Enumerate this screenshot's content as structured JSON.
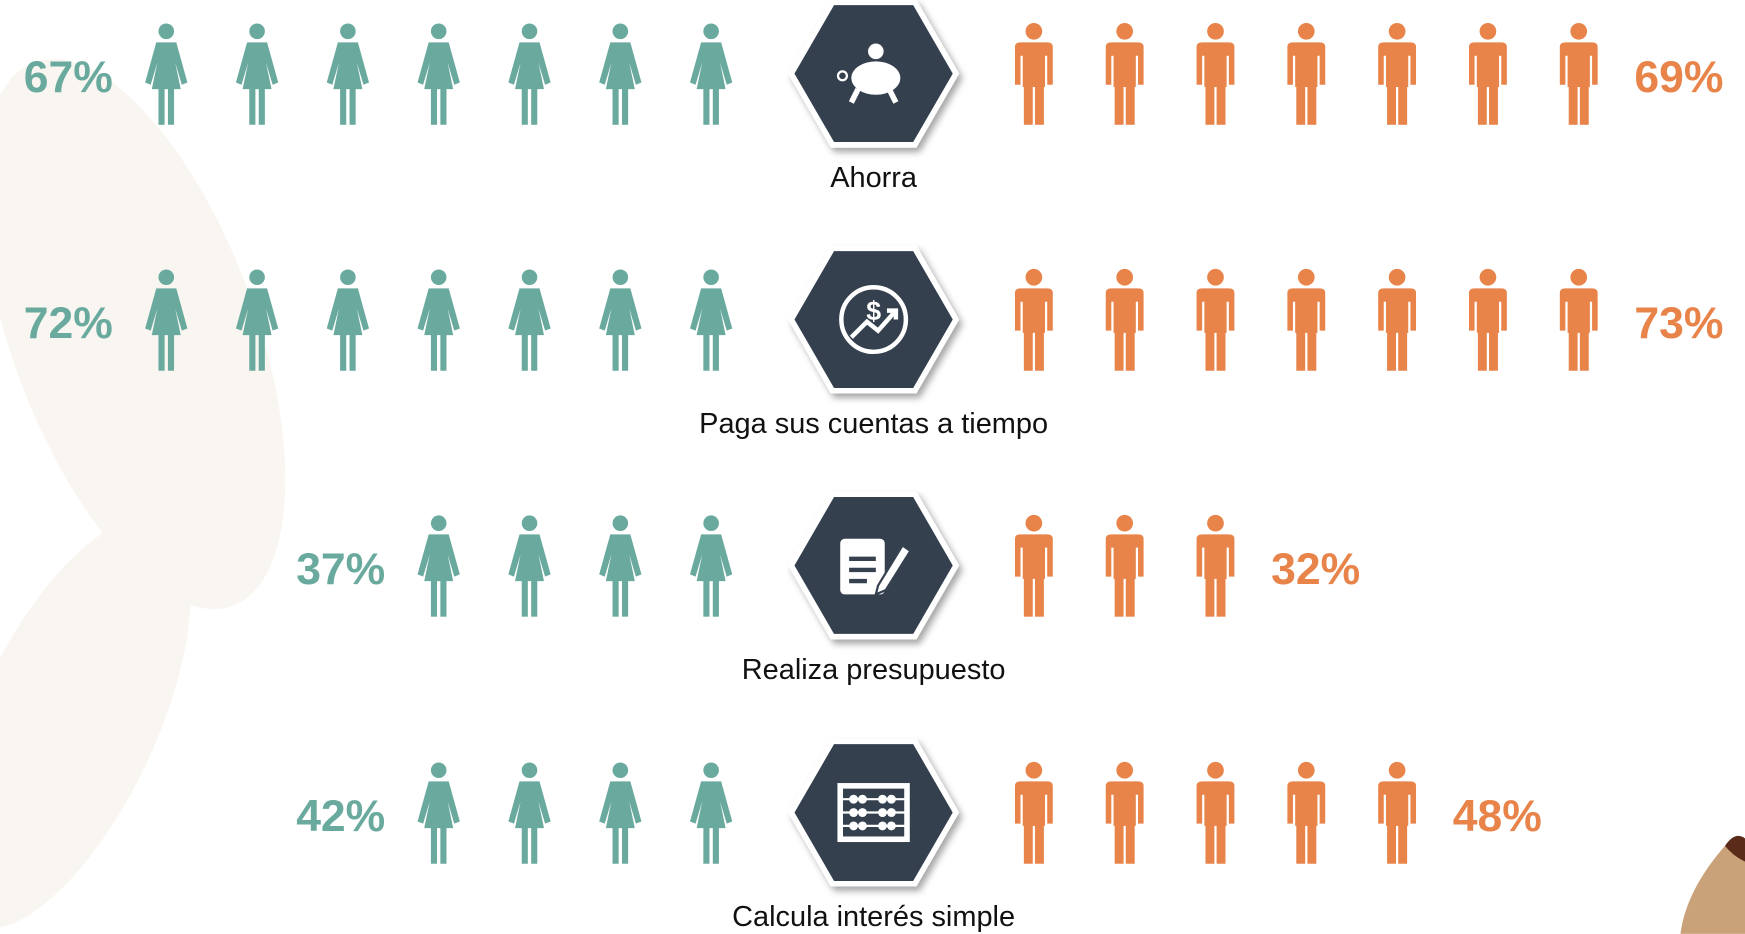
{
  "rows": [
    {
      "label": "Ahorra",
      "women": "67%",
      "men": "69%",
      "women_icons": 7,
      "men_icons": 7
    },
    {
      "label": "Paga sus cuentas a tiempo",
      "women": "72%",
      "men": "73%",
      "women_icons": 7,
      "men_icons": 7
    },
    {
      "label": "Realiza presupuesto",
      "women": "37%",
      "men": "32%",
      "women_icons": 4,
      "men_icons": 3
    },
    {
      "label": "Calcula interés simple",
      "women": "42%",
      "men": "48%",
      "women_icons": 4,
      "men_icons": 5
    }
  ]
}
